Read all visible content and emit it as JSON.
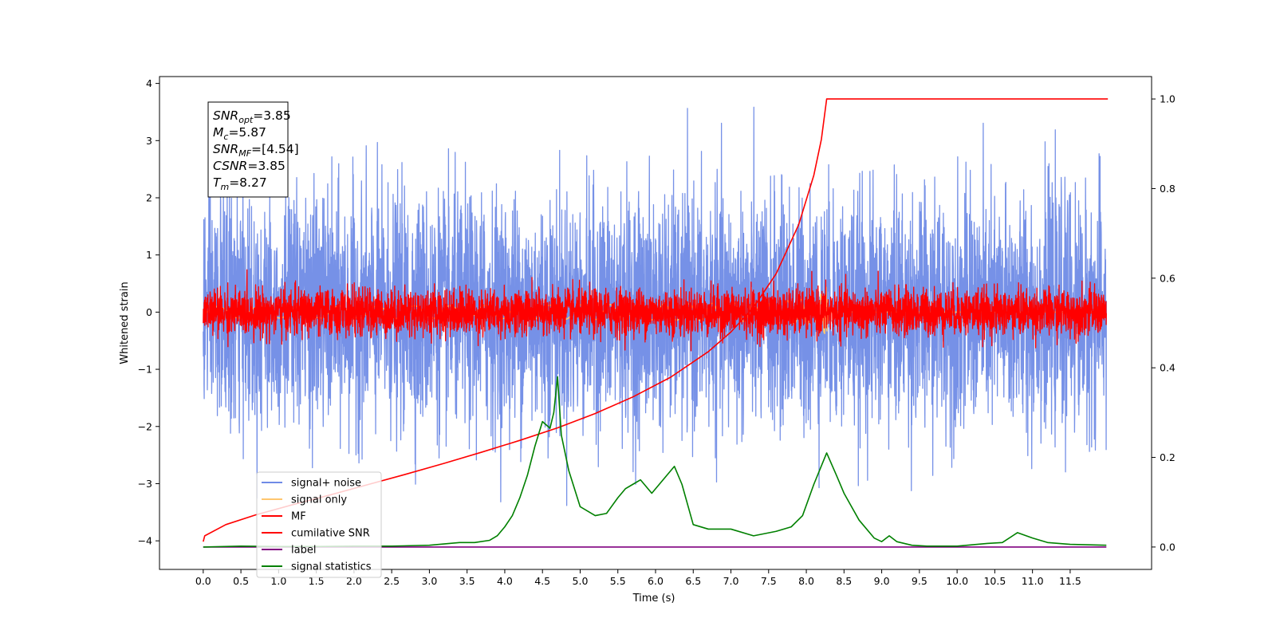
{
  "chart_data": {
    "type": "line",
    "xlabel": "Time (s)",
    "ylabel": "Whitened strain",
    "xlim": [
      -0.58,
      12.58
    ],
    "ylim": [
      -4.5,
      4.12
    ],
    "y2lim": [
      -0.05,
      1.05
    ],
    "xticks": [
      0.0,
      0.5,
      1.0,
      1.5,
      2.0,
      2.5,
      3.0,
      3.5,
      4.0,
      4.5,
      5.0,
      5.5,
      6.0,
      6.5,
      7.0,
      7.5,
      8.0,
      8.5,
      9.0,
      9.5,
      10.0,
      10.5,
      11.0,
      11.5
    ],
    "xtick_labels": [
      "0.0",
      "0.5",
      "1.0",
      "1.5",
      "2.0",
      "2.5",
      "3.0",
      "3.5",
      "4.0",
      "4.5",
      "5.0",
      "5.5",
      "6.0",
      "6.5",
      "7.0",
      "7.5",
      "8.0",
      "8.5",
      "9.0",
      "9.5",
      "10.0",
      "10.5",
      "11.0",
      "11.5"
    ],
    "yticks": [
      -4,
      -3,
      -2,
      -1,
      0,
      1,
      2,
      3,
      4
    ],
    "ytick_labels": [
      "−4",
      "−3",
      "−2",
      "−1",
      "0",
      "1",
      "2",
      "3",
      "4"
    ],
    "y2ticks": [
      0.0,
      0.2,
      0.4,
      0.6,
      0.8,
      1.0
    ],
    "y2tick_labels": [
      "0.0",
      "0.2",
      "0.4",
      "0.6",
      "0.8",
      "1.0"
    ],
    "legend_position": "lower-left",
    "grid": false,
    "series": [
      {
        "name": "signal+ noise",
        "color": "#6f8be6",
        "axis": "left",
        "kind": "noise",
        "x_range": [
          0,
          11.98
        ],
        "mean": 0,
        "std": 1.0
      },
      {
        "name": "signal only",
        "color": "#ffc66e",
        "axis": "left",
        "kind": "chirp",
        "x_range": [
          0,
          11.98
        ],
        "merger_time": 8.27,
        "peak_amplitude": 0.45
      },
      {
        "name": "MF",
        "color": "#ff0000",
        "axis": "left",
        "kind": "noise",
        "x_range": [
          0,
          11.98
        ],
        "mean": 0,
        "std": 0.2
      },
      {
        "name": "cumilative SNR",
        "color": "#ff0000",
        "axis": "right",
        "x": [
          0.0,
          0.02,
          0.3,
          0.7,
          1.2,
          1.7,
          2.2,
          2.7,
          3.2,
          3.7,
          4.2,
          4.7,
          5.2,
          5.7,
          6.2,
          6.7,
          7.0,
          7.3,
          7.6,
          7.9,
          8.1,
          8.2,
          8.27,
          12.0
        ],
        "values": [
          0.012,
          0.025,
          0.05,
          0.072,
          0.095,
          0.117,
          0.14,
          0.163,
          0.187,
          0.212,
          0.238,
          0.266,
          0.298,
          0.335,
          0.379,
          0.436,
          0.48,
          0.535,
          0.61,
          0.72,
          0.83,
          0.91,
          1.0,
          1.0
        ]
      },
      {
        "name": "label",
        "color": "#800080",
        "axis": "right",
        "x": [
          0.0,
          11.98
        ],
        "values": [
          0.0,
          0.0
        ]
      },
      {
        "name": "signal statistics",
        "color": "#008000",
        "axis": "right",
        "x": [
          0.0,
          0.5,
          1.0,
          1.5,
          2.0,
          2.5,
          3.0,
          3.4,
          3.6,
          3.8,
          3.9,
          4.0,
          4.1,
          4.2,
          4.3,
          4.4,
          4.5,
          4.6,
          4.65,
          4.7,
          4.75,
          4.85,
          5.0,
          5.2,
          5.35,
          5.5,
          5.6,
          5.7,
          5.8,
          5.95,
          6.05,
          6.15,
          6.25,
          6.35,
          6.5,
          6.7,
          7.0,
          7.3,
          7.6,
          7.8,
          7.95,
          8.1,
          8.27,
          8.4,
          8.5,
          8.7,
          8.9,
          9.0,
          9.1,
          9.2,
          9.4,
          9.6,
          10.0,
          10.4,
          10.6,
          10.8,
          11.0,
          11.2,
          11.5,
          11.98
        ],
        "values": [
          0.0,
          0.002,
          0.001,
          0.001,
          0.002,
          0.002,
          0.004,
          0.01,
          0.01,
          0.015,
          0.025,
          0.045,
          0.07,
          0.11,
          0.16,
          0.225,
          0.28,
          0.265,
          0.3,
          0.38,
          0.25,
          0.17,
          0.09,
          0.07,
          0.075,
          0.11,
          0.13,
          0.14,
          0.15,
          0.12,
          0.14,
          0.16,
          0.18,
          0.14,
          0.05,
          0.04,
          0.04,
          0.025,
          0.035,
          0.045,
          0.07,
          0.14,
          0.21,
          0.16,
          0.12,
          0.06,
          0.02,
          0.012,
          0.025,
          0.012,
          0.004,
          0.002,
          0.002,
          0.008,
          0.01,
          0.032,
          0.02,
          0.01,
          0.006,
          0.004
        ]
      }
    ],
    "annotation": {
      "lines": [
        {
          "base": "SNR",
          "sub": "opt",
          "rest": "=3.85"
        },
        {
          "base": "M",
          "sub": "c",
          "rest": "=5.87"
        },
        {
          "base": "SNR",
          "sub": "MF",
          "rest": "=[4.54]"
        },
        {
          "base": "CSNR",
          "sub": "",
          "rest": "=3.85"
        },
        {
          "base": "T",
          "sub": "m",
          "rest": "=8.27"
        }
      ]
    }
  }
}
